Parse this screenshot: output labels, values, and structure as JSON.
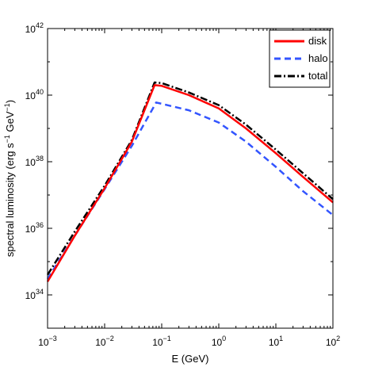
{
  "chart_data": {
    "type": "line",
    "xlabel": "E (GeV)",
    "ylabel_main": "spectral luminosity (erg s",
    "ylabel_exp1": "−1",
    "ylabel_mid": " GeV",
    "ylabel_exp2": "−1",
    "ylabel_end": ")",
    "xscale": "log",
    "yscale": "log",
    "xlim": [
      0.001,
      100
    ],
    "ylim": [
      1e+33,
      1e+42
    ],
    "grid": false,
    "legend_position": "top-right",
    "x_ticks": [
      {
        "value": 0.001,
        "base": "10",
        "exp": "−3"
      },
      {
        "value": 0.01,
        "base": "10",
        "exp": "−2"
      },
      {
        "value": 0.1,
        "base": "10",
        "exp": "−1"
      },
      {
        "value": 1,
        "base": "10",
        "exp": "0"
      },
      {
        "value": 10,
        "base": "10",
        "exp": "1"
      },
      {
        "value": 100,
        "base": "10",
        "exp": "2"
      }
    ],
    "y_ticks": [
      {
        "value": 1e+34,
        "base": "10",
        "exp": "34"
      },
      {
        "value": 1e+36,
        "base": "10",
        "exp": "36"
      },
      {
        "value": 1e+38,
        "base": "10",
        "exp": "38"
      },
      {
        "value": 1e+40,
        "base": "10",
        "exp": "40"
      },
      {
        "value": 1e+42,
        "base": "10",
        "exp": "42"
      }
    ],
    "series": [
      {
        "name": "disk",
        "color": "#ff0000",
        "style": "solid",
        "x": [
          0.001,
          0.003,
          0.01,
          0.03,
          0.075,
          0.1,
          0.3,
          1,
          3,
          10,
          30,
          100
        ],
        "y": [
          2.5e+34,
          6e+35,
          1.6e+37,
          4e+38,
          2e+40,
          1.9e+40,
          1e+40,
          4e+39,
          1e+39,
          1.8e+38,
          3.5e+37,
          6e+36
        ]
      },
      {
        "name": "halo",
        "color": "#3355ff",
        "style": "dashed",
        "x": [
          0.001,
          0.003,
          0.01,
          0.03,
          0.08,
          0.1,
          0.3,
          1,
          3,
          10,
          30,
          100
        ],
        "y": [
          3e+34,
          6e+35,
          1.5e+37,
          3e+38,
          6e+39,
          5.5e+39,
          3.5e+39,
          1.5e+39,
          4e+38,
          7e+37,
          1.3e+37,
          2.5e+36
        ]
      },
      {
        "name": "total",
        "color": "#000000",
        "style": "dashdot",
        "x": [
          0.001,
          0.003,
          0.01,
          0.03,
          0.075,
          0.1,
          0.3,
          1,
          3,
          10,
          30,
          100
        ],
        "y": [
          4e+34,
          8e+35,
          1.9e+37,
          4.5e+38,
          2.4e+40,
          2.3e+40,
          1.2e+40,
          5e+39,
          1.3e+39,
          2.3e+38,
          4.5e+37,
          7.5e+36
        ]
      }
    ]
  }
}
